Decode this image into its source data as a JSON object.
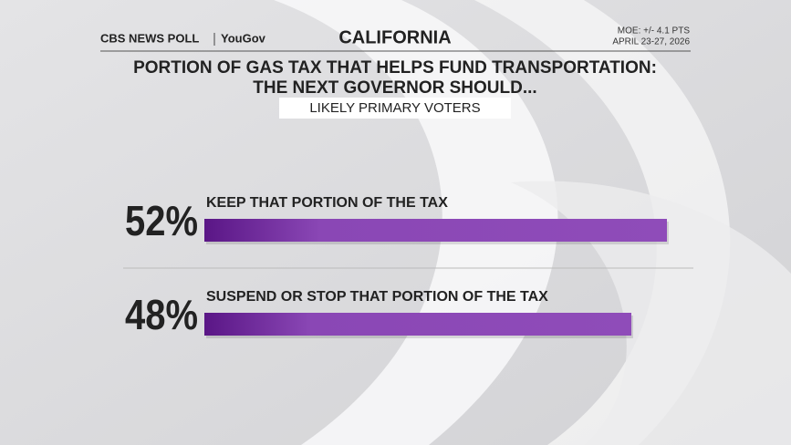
{
  "chart_data": {
    "type": "bar",
    "brand": "CBS NEWS POLL",
    "partner": "YouGov",
    "region": "CALIFORNIA",
    "moe": "MOE: +/- 4.1 PTS",
    "dates": "APRIL 23-27, 2026",
    "title": [
      "PORTION OF GAS TAX THAT HELPS FUND TRANSPORTATION:",
      "THE NEXT GOVERNOR SHOULD..."
    ],
    "subtitle": "LIKELY PRIMARY VOTERS",
    "categories": [
      "KEEP THAT PORTION OF THE TAX",
      "SUSPEND OR STOP THAT PORTION OF THE TAX"
    ],
    "values": [
      52,
      48
    ],
    "value_labels": [
      "52%",
      "48%"
    ],
    "color": "#8a47b5"
  }
}
